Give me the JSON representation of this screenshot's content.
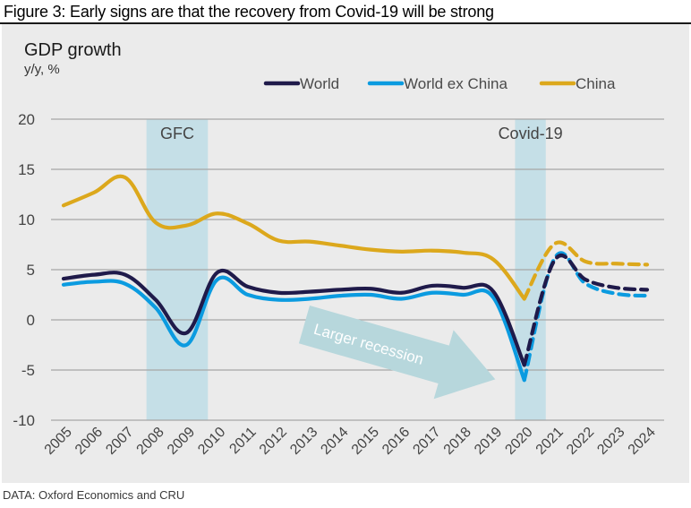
{
  "figure": {
    "title": "Figure 3: Early signs are that the recovery from Covid-19 will be strong",
    "footnote": "DATA: Oxford Economics and CRU"
  },
  "chart_data": {
    "type": "line",
    "title": "GDP growth",
    "subtitle": "y/y, %",
    "xlabel": "",
    "ylabel": "y/y, %",
    "ylim": [
      -10,
      20
    ],
    "yticks": [
      20,
      15,
      10,
      5,
      0,
      -5,
      -10
    ],
    "grid": true,
    "legend_position": "top-center",
    "x": [
      "2005",
      "2006",
      "2007",
      "2008",
      "2009",
      "2010",
      "2011",
      "2012",
      "2013",
      "2014",
      "2015",
      "2016",
      "2017",
      "2018",
      "2019",
      "2020",
      "2021",
      "2022",
      "2023",
      "2024"
    ],
    "forecast_start": "2020",
    "series": [
      {
        "name": "World",
        "color": "#1f1a4a",
        "values": [
          4.1,
          4.5,
          4.5,
          2.0,
          -1.3,
          4.7,
          3.3,
          2.7,
          2.8,
          3.0,
          3.1,
          2.7,
          3.4,
          3.2,
          2.8,
          -4.5,
          6.0,
          4.0,
          3.2,
          3.0
        ]
      },
      {
        "name": "World ex China",
        "color": "#0b9be0",
        "values": [
          3.5,
          3.8,
          3.6,
          1.2,
          -2.5,
          4.0,
          2.5,
          2.0,
          2.1,
          2.4,
          2.5,
          2.1,
          2.7,
          2.5,
          2.2,
          -6.0,
          6.2,
          3.6,
          2.6,
          2.4
        ]
      },
      {
        "name": "China",
        "color": "#dca81c",
        "values": [
          11.4,
          12.7,
          14.2,
          9.7,
          9.4,
          10.6,
          9.6,
          7.9,
          7.8,
          7.4,
          7.0,
          6.8,
          6.9,
          6.7,
          6.0,
          2.1,
          7.6,
          5.8,
          5.6,
          5.5
        ]
      }
    ],
    "shaded_periods": [
      {
        "label": "GFC",
        "start": 2007.7,
        "end": 2009.7,
        "color": "#c5dfe7"
      },
      {
        "label": "Covid-19",
        "start": 2019.7,
        "end": 2020.7,
        "color": "#c5dfe7"
      }
    ],
    "annotations": [
      {
        "type": "arrow",
        "text": "Larger recession",
        "color": "#b7d7dc",
        "text_color": "#ffffff"
      }
    ]
  }
}
